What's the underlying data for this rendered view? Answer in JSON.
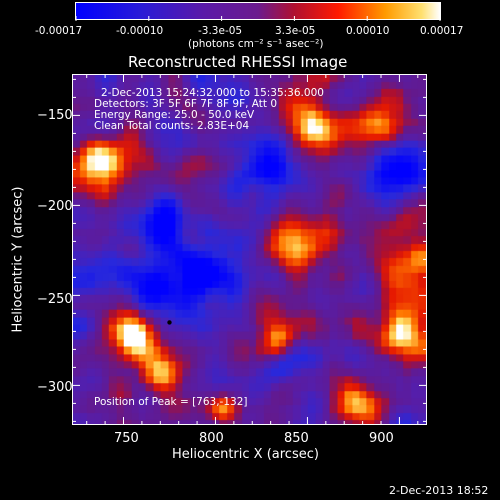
{
  "colorbar": {
    "tick_labels": [
      "-0.00017",
      "-0.00010",
      "-3.3e-05",
      "3.3e-05",
      "0.00010",
      "0.00017"
    ],
    "unit_label": "(photons cm⁻² s⁻¹ asec⁻²)",
    "range": [
      -0.00017,
      0.00017
    ]
  },
  "chart_data": {
    "type": "heatmap",
    "title": "Reconstructed RHESSI Image",
    "xlabel": "Heliocentric X (arcsec)",
    "ylabel": "Heliocentric Y (arcsec)",
    "xlim": [
      722,
      915
    ],
    "ylim": [
      -322,
      -127
    ],
    "x_ticks": [
      750,
      800,
      850,
      900
    ],
    "y_ticks": [
      -300,
      -250,
      -200,
      -150
    ],
    "x_tick_labels": [
      "750",
      "800",
      "850",
      "900"
    ],
    "y_tick_labels": [
      "−300",
      "−250",
      "−200",
      "−150"
    ],
    "info_lines": [
      "2-Dec-2013 15:24:32.000 to 15:35:36.000",
      "Detectors: 3F 5F 6F 7F 8F 9F, Att 0",
      "Energy Range: 25.0 - 50.0 keV",
      "Clean    Total counts: 2.83E+04"
    ],
    "peak_label": "Position of Peak = [763,-132]",
    "marker": {
      "x": 775,
      "y": -265
    },
    "colormap": "blue-purple-red-yellow"
  },
  "footer": {
    "timestamp": "2-Dec-2013 18:52"
  }
}
